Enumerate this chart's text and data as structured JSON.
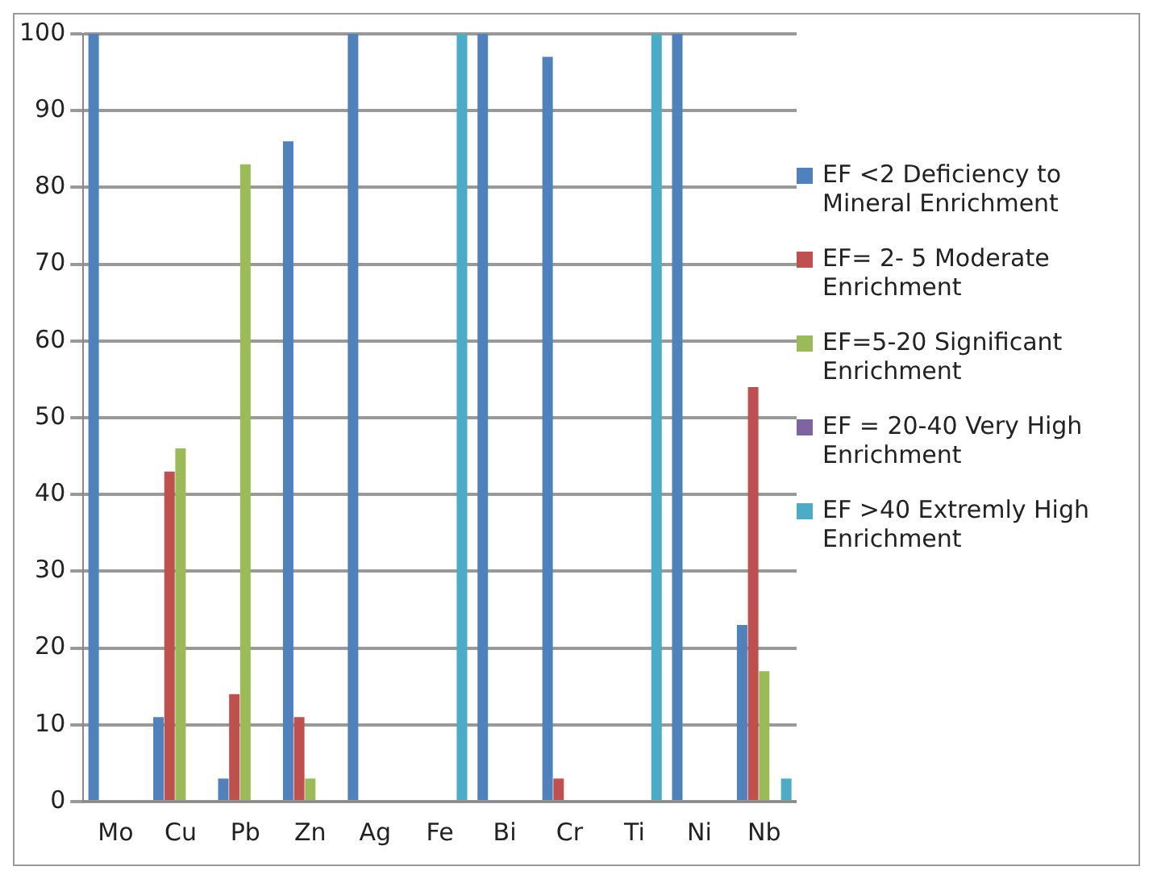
{
  "chart_data": {
    "type": "bar",
    "categories": [
      "Mo",
      "Cu",
      "Pb",
      "Zn",
      "Ag",
      "Fe",
      "Bi",
      "Cr",
      "Ti",
      "Ni",
      "Nb"
    ],
    "series": [
      {
        "name": "EF <2 Deficiency to Mineral Enrichment",
        "color": "#4f81bd",
        "values": [
          100,
          11,
          3,
          86,
          100,
          0,
          100,
          97,
          0,
          100,
          23
        ]
      },
      {
        "name": "EF= 2- 5 Moderate Enrichment",
        "color": "#c0504d",
        "values": [
          0,
          43,
          14,
          11,
          0,
          0,
          0,
          3,
          0,
          0,
          54
        ]
      },
      {
        "name": "EF=5-20 Significant Enrichment",
        "color": "#9bbb59",
        "values": [
          0,
          46,
          83,
          3,
          0,
          0,
          0,
          0,
          0,
          0,
          17
        ]
      },
      {
        "name": "EF = 20-40 Very High Enrichment",
        "color": "#8064a2",
        "values": [
          0,
          0,
          0,
          0,
          0,
          0,
          0,
          0,
          0,
          0,
          0
        ]
      },
      {
        "name": "EF >40 Extremly High Enrichment",
        "color": "#4bacc6",
        "values": [
          0,
          0,
          0,
          0,
          0,
          100,
          0,
          0,
          100,
          0,
          3
        ]
      }
    ],
    "ylim": [
      0,
      100
    ],
    "yticks": [
      0,
      10,
      20,
      30,
      40,
      50,
      60,
      70,
      80,
      90,
      100
    ],
    "grid": "y",
    "legend": "right"
  }
}
